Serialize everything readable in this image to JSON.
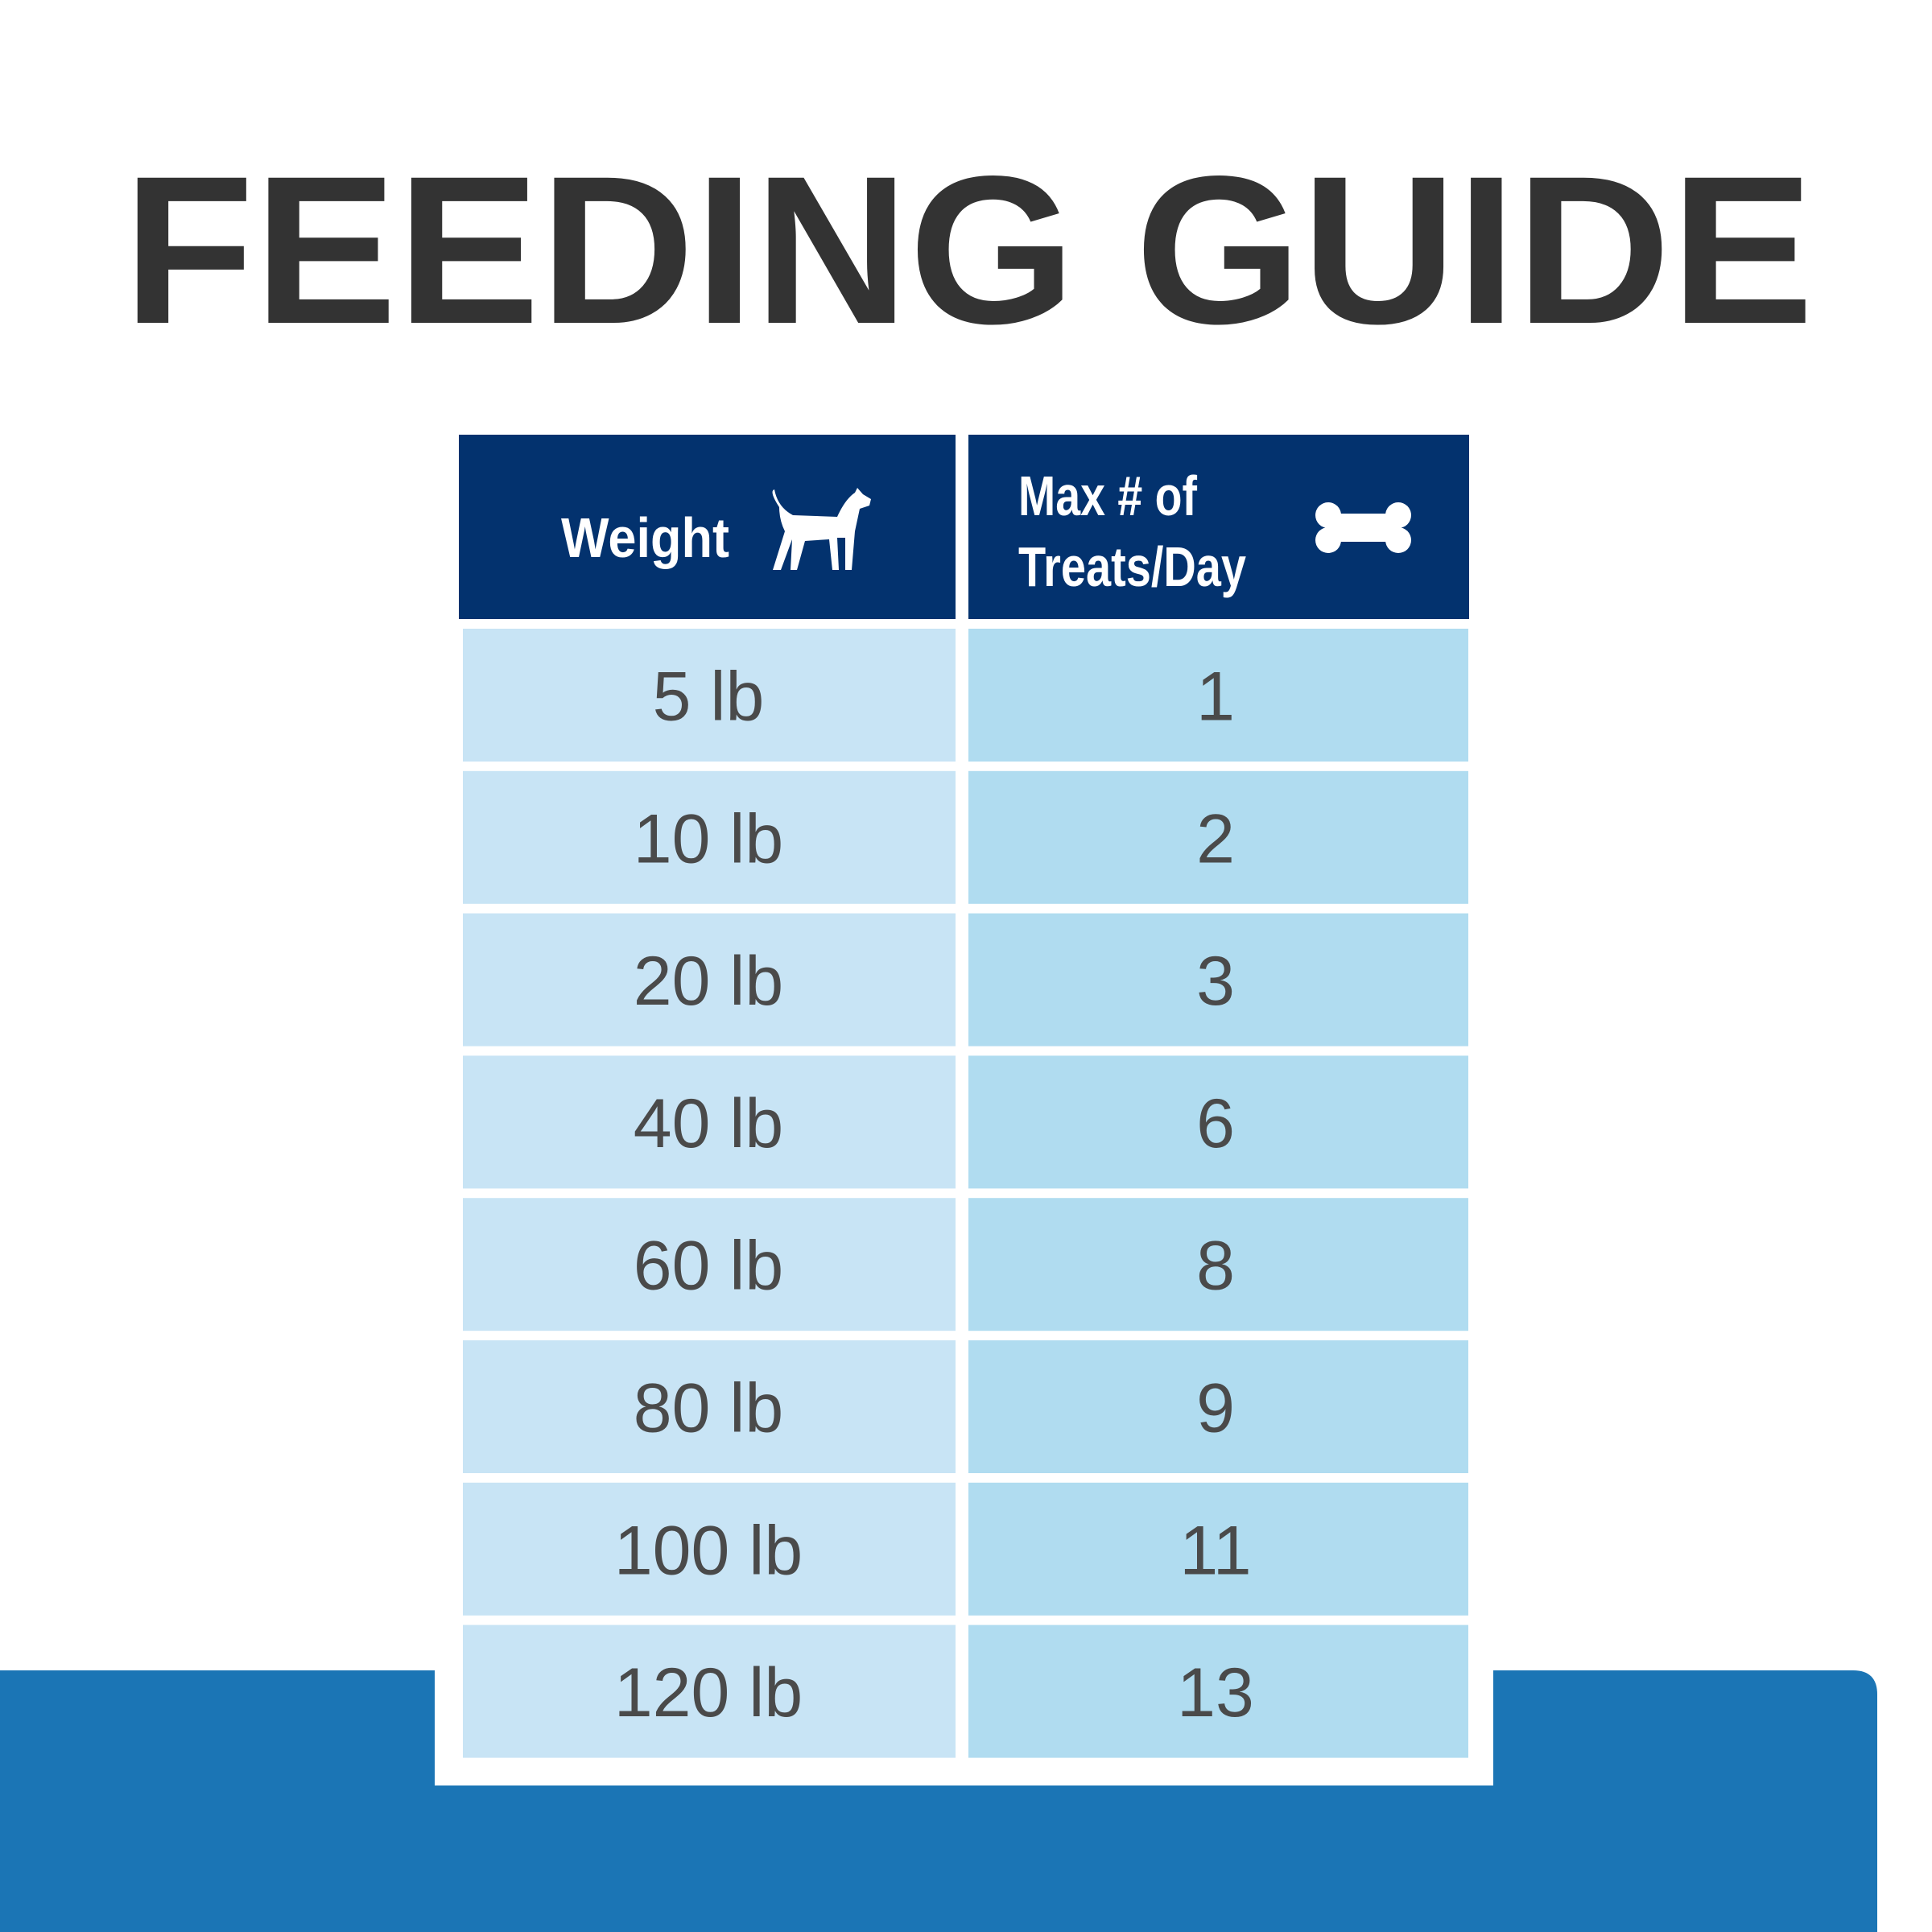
{
  "title": "FEEDING GUIDE",
  "table": {
    "header": [
      [
        "Weight"
      ],
      [
        "Max # of",
        "Treats/Day"
      ]
    ],
    "rows": [
      [
        "5 lb",
        "1"
      ],
      [
        "10 lb",
        "2"
      ],
      [
        "20 lb",
        "3"
      ],
      [
        "40 lb",
        "6"
      ],
      [
        "60 lb",
        "8"
      ],
      [
        "80 lb",
        "9"
      ],
      [
        "100 lb",
        "11"
      ],
      [
        "120 lb",
        "13"
      ]
    ]
  }
}
